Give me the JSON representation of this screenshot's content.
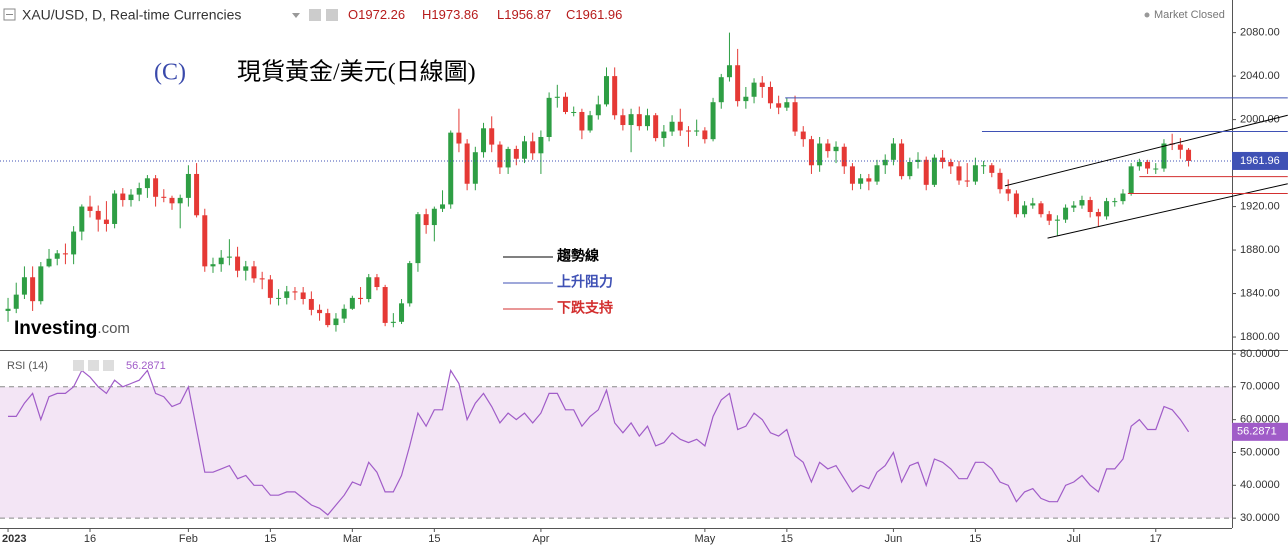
{
  "header": {
    "symbol": "XAU/USD, D, Real-time Currencies",
    "ohlc_letters": [
      "O",
      "H",
      "L",
      "C"
    ],
    "status": "Market Closed"
  },
  "annotation": {
    "label": "(C)",
    "title": "現貨黃金/美元(日線圖)"
  },
  "legend": [
    {
      "name": "趨勢線",
      "color": "#000000"
    },
    {
      "name": "上升阻力",
      "color": "#3f51b5"
    },
    {
      "name": "下跌支持",
      "color": "#d32f2f"
    }
  ],
  "logo": [
    "Investing",
    ".com"
  ],
  "chart_data": {
    "type": "candlestick",
    "up_color": "#2e9e44",
    "down_color": "#e53935",
    "last_price_color": "#3f51b5",
    "xlim": [
      -0.98,
      149.3
    ],
    "xticks": [
      {
        "value": 0,
        "label": "2023"
      },
      {
        "value": 10,
        "label": "16"
      },
      {
        "value": 22,
        "label": "Feb"
      },
      {
        "value": 32,
        "label": "15"
      },
      {
        "value": 42,
        "label": "Mar"
      },
      {
        "value": 52,
        "label": "15"
      },
      {
        "value": 65,
        "label": "Apr"
      },
      {
        "value": 85,
        "label": "May"
      },
      {
        "value": 95,
        "label": "15"
      },
      {
        "value": 108,
        "label": "Jun"
      },
      {
        "value": 118,
        "label": "15"
      },
      {
        "value": 130,
        "label": "Jul"
      },
      {
        "value": 140,
        "label": "17"
      }
    ],
    "ylim": [
      1789,
      2110
    ],
    "yticks": [
      {
        "value": 1800,
        "label": "1800.00"
      },
      {
        "value": 1840,
        "label": "1840.00"
      },
      {
        "value": 1880,
        "label": "1880.00"
      },
      {
        "value": 1920,
        "label": "1920.00"
      },
      {
        "value": 1960,
        "label": "1960.00"
      },
      {
        "value": 2000,
        "label": "2000.00"
      },
      {
        "value": 2040,
        "label": "2040.00"
      },
      {
        "value": 2080,
        "label": "2080.00"
      }
    ],
    "ohlc": [
      [
        1824,
        1836,
        1814,
        1826
      ],
      [
        1826,
        1850,
        1822,
        1839
      ],
      [
        1839,
        1865,
        1835,
        1855
      ],
      [
        1855,
        1865,
        1824,
        1833
      ],
      [
        1833,
        1869,
        1830,
        1865
      ],
      [
        1865,
        1881,
        1864,
        1872
      ],
      [
        1872,
        1880,
        1866,
        1877
      ],
      [
        1877,
        1886,
        1867,
        1876
      ],
      [
        1876,
        1902,
        1867,
        1897
      ],
      [
        1897,
        1922,
        1889,
        1920
      ],
      [
        1920,
        1930,
        1910,
        1916
      ],
      [
        1916,
        1921,
        1897,
        1908
      ],
      [
        1908,
        1925,
        1897,
        1904
      ],
      [
        1904,
        1935,
        1900,
        1932
      ],
      [
        1932,
        1937,
        1920,
        1926
      ],
      [
        1926,
        1936,
        1920,
        1931
      ],
      [
        1931,
        1942,
        1925,
        1937
      ],
      [
        1937,
        1949,
        1928,
        1946
      ],
      [
        1946,
        1949,
        1920,
        1929
      ],
      [
        1929,
        1936,
        1924,
        1928
      ],
      [
        1928,
        1930,
        1917,
        1923
      ],
      [
        1923,
        1931,
        1900,
        1928
      ],
      [
        1928,
        1958,
        1920,
        1950
      ],
      [
        1950,
        1960,
        1910,
        1912
      ],
      [
        1912,
        1918,
        1860,
        1865
      ],
      [
        1865,
        1873,
        1859,
        1867
      ],
      [
        1867,
        1880,
        1860,
        1873
      ],
      [
        1873,
        1890,
        1866,
        1874
      ],
      [
        1874,
        1883,
        1855,
        1861
      ],
      [
        1861,
        1870,
        1852,
        1865
      ],
      [
        1865,
        1870,
        1850,
        1854
      ],
      [
        1854,
        1860,
        1844,
        1853
      ],
      [
        1853,
        1857,
        1830,
        1836
      ],
      [
        1836,
        1844,
        1829,
        1836
      ],
      [
        1836,
        1847,
        1830,
        1842
      ],
      [
        1842,
        1846,
        1834,
        1841
      ],
      [
        1841,
        1846,
        1830,
        1835
      ],
      [
        1835,
        1842,
        1820,
        1825
      ],
      [
        1825,
        1830,
        1815,
        1822
      ],
      [
        1822,
        1826,
        1809,
        1811
      ],
      [
        1811,
        1822,
        1805,
        1817
      ],
      [
        1817,
        1830,
        1813,
        1826
      ],
      [
        1826,
        1838,
        1825,
        1836
      ],
      [
        1836,
        1846,
        1830,
        1835
      ],
      [
        1835,
        1858,
        1832,
        1855
      ],
      [
        1855,
        1858,
        1843,
        1846
      ],
      [
        1846,
        1848,
        1810,
        1813
      ],
      [
        1813,
        1822,
        1809,
        1814
      ],
      [
        1814,
        1835,
        1812,
        1831
      ],
      [
        1831,
        1870,
        1828,
        1868
      ],
      [
        1868,
        1915,
        1860,
        1913
      ],
      [
        1913,
        1918,
        1895,
        1903
      ],
      [
        1903,
        1920,
        1888,
        1918
      ],
      [
        1918,
        1935,
        1915,
        1922
      ],
      [
        1922,
        1990,
        1918,
        1988
      ],
      [
        1988,
        2010,
        1970,
        1978
      ],
      [
        1978,
        1982,
        1935,
        1941
      ],
      [
        1941,
        1975,
        1935,
        1970
      ],
      [
        1970,
        1997,
        1965,
        1992
      ],
      [
        1992,
        2003,
        1970,
        1977
      ],
      [
        1977,
        1980,
        1950,
        1956
      ],
      [
        1956,
        1975,
        1950,
        1973
      ],
      [
        1973,
        1976,
        1958,
        1964
      ],
      [
        1964,
        1985,
        1960,
        1980
      ],
      [
        1980,
        1988,
        1963,
        1969
      ],
      [
        1969,
        1990,
        1950,
        1984
      ],
      [
        1984,
        2025,
        1980,
        2020
      ],
      [
        2020,
        2032,
        2011,
        2021
      ],
      [
        2021,
        2025,
        2005,
        2007
      ],
      [
        2007,
        2012,
        2003,
        2007
      ],
      [
        2007,
        2010,
        1982,
        1990
      ],
      [
        1990,
        2008,
        1988,
        2004
      ],
      [
        2004,
        2022,
        2000,
        2014
      ],
      [
        2014,
        2048,
        2012,
        2040
      ],
      [
        2040,
        2048,
        2000,
        2004
      ],
      [
        2004,
        2010,
        1990,
        1995
      ],
      [
        1995,
        2010,
        1970,
        2005
      ],
      [
        2005,
        2012,
        1990,
        1994
      ],
      [
        1994,
        2010,
        1990,
        2004
      ],
      [
        2004,
        2006,
        1980,
        1983
      ],
      [
        1983,
        1995,
        1975,
        1989
      ],
      [
        1989,
        2004,
        1985,
        1998
      ],
      [
        1998,
        2010,
        1985,
        1990
      ],
      [
        1990,
        1994,
        1975,
        1989
      ],
      [
        1989,
        2000,
        1985,
        1990
      ],
      [
        1990,
        1993,
        1978,
        1982
      ],
      [
        1982,
        2020,
        1980,
        2016
      ],
      [
        2016,
        2042,
        2010,
        2039
      ],
      [
        2039,
        2080,
        2035,
        2050
      ],
      [
        2050,
        2065,
        2012,
        2017
      ],
      [
        2017,
        2030,
        2010,
        2021
      ],
      [
        2021,
        2038,
        2015,
        2034
      ],
      [
        2034,
        2040,
        2020,
        2030
      ],
      [
        2030,
        2035,
        2010,
        2015
      ],
      [
        2015,
        2022,
        2005,
        2011
      ],
      [
        2011,
        2020,
        2008,
        2016
      ],
      [
        2016,
        2022,
        1985,
        1989
      ],
      [
        1989,
        1994,
        1975,
        1982
      ],
      [
        1982,
        1985,
        1950,
        1958
      ],
      [
        1958,
        1984,
        1952,
        1978
      ],
      [
        1978,
        1982,
        1965,
        1971
      ],
      [
        1971,
        1980,
        1960,
        1975
      ],
      [
        1975,
        1978,
        1950,
        1957
      ],
      [
        1957,
        1960,
        1935,
        1941
      ],
      [
        1941,
        1950,
        1936,
        1946
      ],
      [
        1946,
        1950,
        1935,
        1943
      ],
      [
        1943,
        1963,
        1940,
        1958
      ],
      [
        1958,
        1968,
        1950,
        1963
      ],
      [
        1963,
        1983,
        1958,
        1978
      ],
      [
        1978,
        1982,
        1945,
        1948
      ],
      [
        1948,
        1965,
        1945,
        1961
      ],
      [
        1961,
        1970,
        1955,
        1963
      ],
      [
        1963,
        1966,
        1935,
        1940
      ],
      [
        1940,
        1968,
        1938,
        1965
      ],
      [
        1965,
        1972,
        1955,
        1961
      ],
      [
        1961,
        1964,
        1950,
        1957
      ],
      [
        1957,
        1962,
        1940,
        1944
      ],
      [
        1944,
        1960,
        1938,
        1943
      ],
      [
        1943,
        1965,
        1940,
        1958
      ],
      [
        1958,
        1962,
        1950,
        1958
      ],
      [
        1958,
        1960,
        1947,
        1951
      ],
      [
        1951,
        1955,
        1932,
        1936
      ],
      [
        1936,
        1945,
        1925,
        1932
      ],
      [
        1932,
        1935,
        1910,
        1913
      ],
      [
        1913,
        1925,
        1910,
        1921
      ],
      [
        1921,
        1928,
        1918,
        1923
      ],
      [
        1923,
        1925,
        1910,
        1913
      ],
      [
        1913,
        1916,
        1903,
        1907
      ],
      [
        1907,
        1912,
        1893,
        1908
      ],
      [
        1908,
        1922,
        1905,
        1919
      ],
      [
        1919,
        1925,
        1915,
        1921
      ],
      [
        1921,
        1930,
        1918,
        1926
      ],
      [
        1926,
        1929,
        1910,
        1915
      ],
      [
        1915,
        1918,
        1902,
        1911
      ],
      [
        1911,
        1928,
        1908,
        1925
      ],
      [
        1925,
        1928,
        1920,
        1925
      ],
      [
        1925,
        1936,
        1922,
        1932
      ],
      [
        1932,
        1960,
        1930,
        1957
      ],
      [
        1957,
        1964,
        1953,
        1961
      ],
      [
        1961,
        1963,
        1950,
        1955
      ],
      [
        1955,
        1960,
        1950,
        1955
      ],
      [
        1955,
        1982,
        1952,
        1978
      ],
      [
        1978,
        1987,
        1972,
        1977
      ],
      [
        1977,
        1983,
        1964,
        1972.26
      ],
      [
        1972.26,
        1973.86,
        1956.87,
        1961.96
      ]
    ],
    "drawings": [
      {
        "color": "#000000",
        "points": [
          [
            121.6,
            1939
          ],
          [
            156.1,
            2004
          ]
        ]
      },
      {
        "color": "#000000",
        "points": [
          [
            126.8,
            1891
          ],
          [
            156.1,
            1941
          ]
        ]
      },
      {
        "color": "#3f51b5",
        "points": [
          [
            94.8,
            2020
          ],
          [
            156.1,
            2020
          ]
        ]
      },
      {
        "color": "#3f51b5",
        "points": [
          [
            118.8,
            1989
          ],
          [
            156.1,
            1989
          ]
        ]
      },
      {
        "color": "#d32f2f",
        "points": [
          [
            138,
            1947.5
          ],
          [
            156.1,
            1947.5
          ]
        ]
      },
      {
        "color": "#d32f2f",
        "points": [
          [
            136.6,
            1932
          ],
          [
            156.1,
            1932
          ]
        ]
      }
    ],
    "rsi": {
      "name": "RSI (14)",
      "color": "#a05cc8",
      "band": [
        30,
        70
      ],
      "band_color": "#f3e5f5",
      "ylim": [
        27,
        80.6
      ],
      "yticks": [
        {
          "value": 30,
          "label": "30.0000"
        },
        {
          "value": 40,
          "label": "40.0000"
        },
        {
          "value": 50,
          "label": "50.0000"
        },
        {
          "value": 60,
          "label": "60.0000"
        },
        {
          "value": 70,
          "label": "70.0000"
        },
        {
          "value": 80,
          "label": "80.0000"
        }
      ],
      "values": [
        61,
        61,
        65,
        68,
        60,
        67,
        68,
        68,
        70,
        75,
        73,
        70,
        68,
        72,
        70,
        71,
        72,
        75,
        68,
        67,
        64,
        65,
        70,
        57,
        44,
        44,
        45,
        46,
        42,
        43,
        40,
        40,
        37,
        37,
        38,
        38,
        36,
        34,
        33,
        31,
        34,
        37,
        41,
        40,
        47,
        44,
        38,
        38,
        43,
        52,
        62,
        58,
        63,
        63,
        75,
        71,
        60,
        65,
        68,
        64,
        59,
        62,
        60,
        62,
        59,
        62,
        68,
        68,
        63,
        63,
        58,
        61,
        63,
        69,
        59,
        56,
        59,
        55,
        58,
        52,
        53,
        56,
        54,
        53,
        54,
        52,
        61,
        66,
        68,
        57,
        58,
        62,
        60,
        56,
        55,
        57,
        49,
        47,
        41,
        47,
        45,
        46,
        42,
        38,
        40,
        39,
        44,
        46,
        50,
        41,
        46,
        47,
        40,
        48,
        47,
        45,
        42,
        42,
        47,
        47,
        45,
        41,
        40,
        35,
        38,
        39,
        36,
        35,
        35,
        40,
        41,
        43,
        40,
        38,
        45,
        45,
        48,
        58,
        60,
        57,
        57,
        64,
        63,
        60,
        56.2871
      ]
    }
  }
}
